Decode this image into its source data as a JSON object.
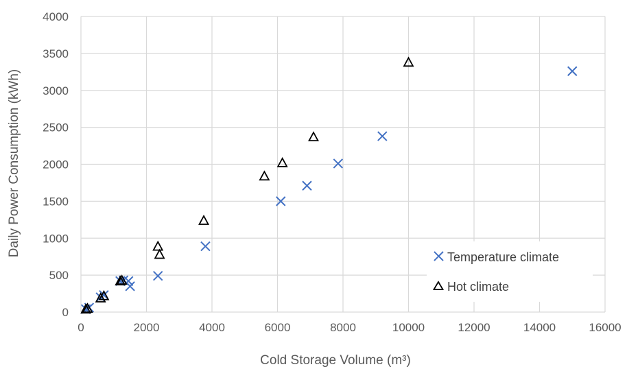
{
  "chart_data": {
    "type": "scatter",
    "title": "",
    "xlabel": "Cold Storage Volume (m³)",
    "ylabel": "Daily  Power Consumption (kWh)",
    "xlim": [
      0,
      16000
    ],
    "ylim": [
      0,
      4000
    ],
    "xticks": [
      0,
      2000,
      4000,
      6000,
      8000,
      10000,
      12000,
      14000,
      16000
    ],
    "yticks": [
      0,
      500,
      1000,
      1500,
      2000,
      2500,
      3000,
      3500,
      4000
    ],
    "grid": true,
    "legend_position": "bottom-right",
    "series": [
      {
        "name": "Temperature climate",
        "marker": "x",
        "color": "#4472C4",
        "points": [
          [
            150,
            40
          ],
          [
            250,
            60
          ],
          [
            600,
            200
          ],
          [
            700,
            230
          ],
          [
            1200,
            420
          ],
          [
            1300,
            430
          ],
          [
            1450,
            420
          ],
          [
            1500,
            350
          ],
          [
            2350,
            490
          ],
          [
            3800,
            890
          ],
          [
            6100,
            1500
          ],
          [
            6900,
            1710
          ],
          [
            7850,
            2010
          ],
          [
            9200,
            2380
          ],
          [
            15000,
            3260
          ]
        ]
      },
      {
        "name": "Hot climate",
        "marker": "triangle",
        "color": "#000000",
        "points": [
          [
            150,
            40
          ],
          [
            200,
            50
          ],
          [
            600,
            190
          ],
          [
            700,
            220
          ],
          [
            1200,
            420
          ],
          [
            1250,
            430
          ],
          [
            2350,
            890
          ],
          [
            2400,
            780
          ],
          [
            3750,
            1240
          ],
          [
            5600,
            1840
          ],
          [
            6150,
            2020
          ],
          [
            7100,
            2370
          ],
          [
            10000,
            3380
          ]
        ]
      }
    ]
  }
}
